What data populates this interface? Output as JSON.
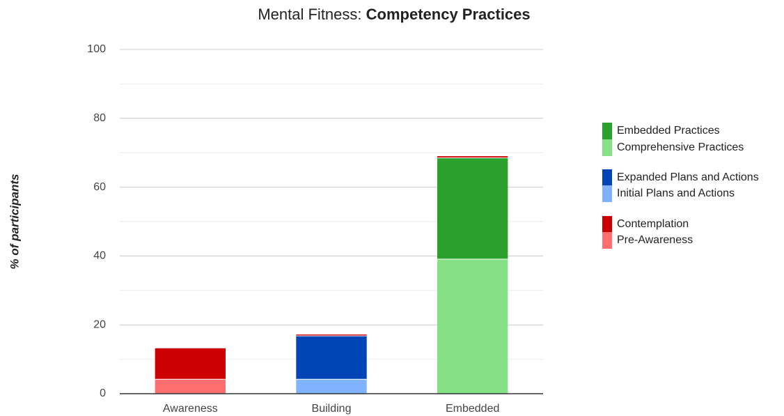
{
  "chart_data": {
    "type": "stacked_bar",
    "title": [
      "Mental Fitness:",
      "Competency Practices"
    ],
    "y_label": "% of participants",
    "categories": [
      "Awareness",
      "Building",
      "Embedded"
    ],
    "series": [
      {
        "name": "Pre-Awareness",
        "color": "#ff6f6f",
        "values": [
          4.2,
          0,
          0
        ]
      },
      {
        "name": "Initial Plans and Actions",
        "color": "#80b3ff",
        "values": [
          0,
          4.2,
          0
        ]
      },
      {
        "name": "Comprehensive Practices",
        "color": "#86e086",
        "values": [
          0,
          0,
          39.1
        ]
      },
      {
        "name": "Expanded Plans and Actions",
        "color": "#0044b5",
        "values": [
          0,
          12.6,
          0
        ]
      },
      {
        "name": "Embedded Practices",
        "color": "#2ca02c",
        "values": [
          0,
          0,
          29.4
        ]
      },
      {
        "name": "Contemplation",
        "color": "#cc0000",
        "values": [
          9,
          0.4,
          0.5
        ]
      }
    ],
    "ylim": [
      0,
      100
    ],
    "yticks": [
      0,
      20,
      40,
      60,
      80,
      100
    ],
    "yticks_minor": [
      10,
      30,
      50,
      70,
      90
    ],
    "grid": true
  }
}
